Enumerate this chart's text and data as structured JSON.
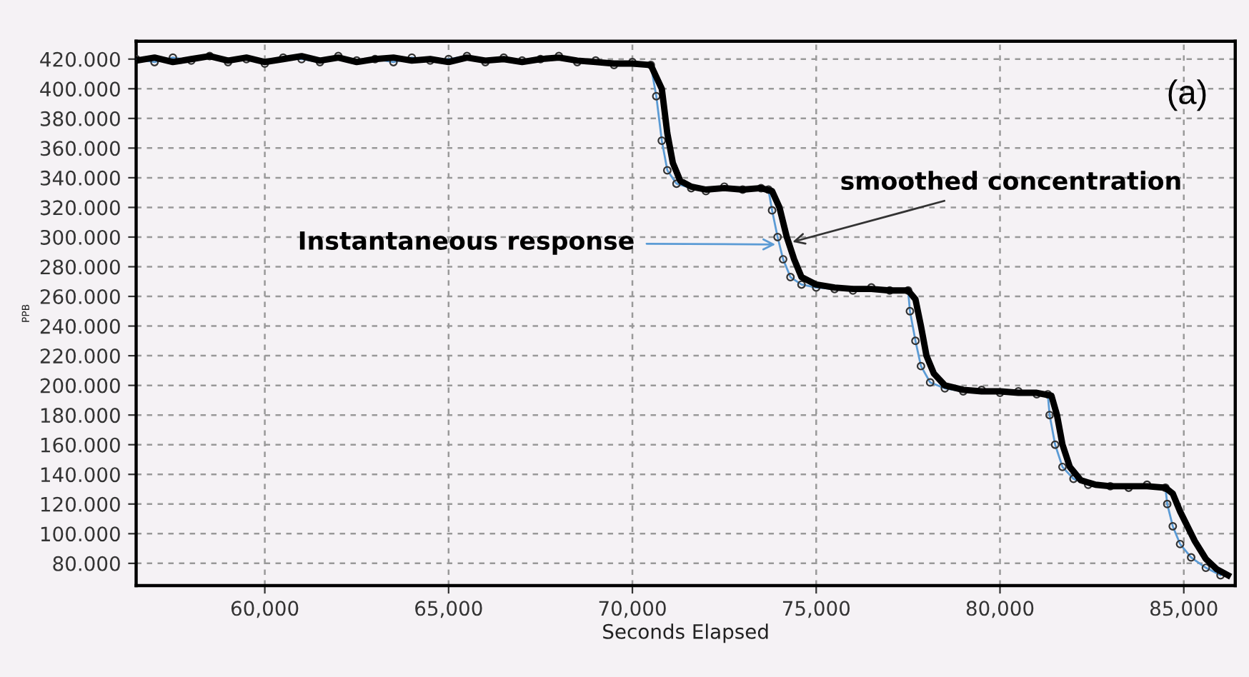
{
  "chart_data": {
    "type": "line",
    "title": "(a)",
    "xlabel": "Seconds Elapsed",
    "ylabel": "PPB",
    "xlim": [
      56500,
      86400
    ],
    "ylim": [
      65,
      432
    ],
    "xticks": [
      {
        "value": 60000,
        "label": "60,000"
      },
      {
        "value": 65000,
        "label": "65,000"
      },
      {
        "value": 70000,
        "label": "70,000"
      },
      {
        "value": 75000,
        "label": "75,000"
      },
      {
        "value": 80000,
        "label": "80,000"
      },
      {
        "value": 85000,
        "label": "85,000"
      }
    ],
    "yticks": [
      {
        "value": 80,
        "label": "80.000"
      },
      {
        "value": 100,
        "label": "100.000"
      },
      {
        "value": 120,
        "label": "120.000"
      },
      {
        "value": 140,
        "label": "140.000"
      },
      {
        "value": 160,
        "label": "160.000"
      },
      {
        "value": 180,
        "label": "180.000"
      },
      {
        "value": 200,
        "label": "200.000"
      },
      {
        "value": 220,
        "label": "220.000"
      },
      {
        "value": 240,
        "label": "240.000"
      },
      {
        "value": 260,
        "label": "260.000"
      },
      {
        "value": 280,
        "label": "280.000"
      },
      {
        "value": 300,
        "label": "300.000"
      },
      {
        "value": 320,
        "label": "320.000"
      },
      {
        "value": 340,
        "label": "340.000"
      },
      {
        "value": 360,
        "label": "360.000"
      },
      {
        "value": 380,
        "label": "380.000"
      },
      {
        "value": 400,
        "label": "400.000"
      },
      {
        "value": 420,
        "label": "420.000"
      }
    ],
    "grid": true,
    "series": [
      {
        "color": "#5b9bd5",
        "marker": "circle",
        "line_style": "solid",
        "x": [
          56500,
          57000,
          57500,
          58000,
          58500,
          59000,
          59500,
          60000,
          60500,
          61000,
          61500,
          62000,
          62500,
          63000,
          63500,
          64000,
          64500,
          65000,
          65500,
          66000,
          66500,
          67000,
          67500,
          68000,
          68500,
          69000,
          69500,
          70000,
          70500,
          70650,
          70800,
          70950,
          71200,
          71600,
          72000,
          72500,
          73000,
          73500,
          73700,
          73800,
          73950,
          74100,
          74300,
          74600,
          75000,
          75500,
          76000,
          76500,
          77000,
          77500,
          77550,
          77700,
          77850,
          78100,
          78500,
          79000,
          79500,
          80000,
          80500,
          81000,
          81300,
          81350,
          81500,
          81700,
          82000,
          82400,
          83000,
          83500,
          84000,
          84500,
          84550,
          84700,
          84900,
          85200,
          85600,
          86000
        ],
        "values": [
          420,
          418,
          421,
          419,
          422,
          418,
          420,
          417,
          421,
          420,
          418,
          422,
          419,
          420,
          418,
          421,
          419,
          420,
          422,
          418,
          421,
          419,
          420,
          422,
          418,
          419,
          416,
          418,
          416,
          395,
          365,
          345,
          336,
          333,
          331,
          334,
          332,
          333,
          332,
          318,
          300,
          285,
          273,
          268,
          266,
          265,
          264,
          266,
          264,
          264,
          250,
          230,
          213,
          202,
          198,
          196,
          197,
          195,
          196,
          194,
          194,
          180,
          160,
          145,
          137,
          133,
          132,
          131,
          133,
          131,
          120,
          105,
          93,
          84,
          77,
          72
        ]
      },
      {
        "color": "#000000",
        "marker": "none",
        "line_style": "solid",
        "x": [
          56500,
          57000,
          57500,
          58000,
          58500,
          59000,
          59500,
          60000,
          60500,
          61000,
          61500,
          62000,
          62500,
          63000,
          63500,
          64000,
          64500,
          65000,
          65500,
          66000,
          66500,
          67000,
          67500,
          68000,
          68500,
          69000,
          69500,
          70000,
          70500,
          70800,
          70950,
          71100,
          71300,
          71600,
          72000,
          72500,
          73000,
          73500,
          73800,
          74000,
          74200,
          74400,
          74600,
          75000,
          75500,
          76000,
          76500,
          77000,
          77500,
          77700,
          77850,
          78000,
          78200,
          78500,
          79000,
          79500,
          80000,
          80500,
          81000,
          81400,
          81550,
          81700,
          81900,
          82200,
          82600,
          83000,
          83500,
          84000,
          84500,
          84700,
          84900,
          85100,
          85300,
          85600,
          85900,
          86200
        ],
        "values": [
          419,
          421,
          418,
          420,
          422,
          419,
          421,
          418,
          420,
          422,
          419,
          421,
          418,
          420,
          421,
          419,
          420,
          418,
          421,
          419,
          420,
          418,
          420,
          421,
          419,
          418,
          417,
          417,
          416,
          400,
          370,
          350,
          338,
          334,
          332,
          333,
          332,
          333,
          331,
          320,
          300,
          285,
          273,
          268,
          266,
          265,
          265,
          264,
          264,
          258,
          240,
          220,
          208,
          200,
          197,
          196,
          196,
          195,
          195,
          193,
          180,
          160,
          145,
          136,
          133,
          132,
          132,
          132,
          131,
          127,
          115,
          105,
          95,
          83,
          76,
          72
        ]
      }
    ],
    "annotations": [
      {
        "text": "Instantaneous response",
        "x": 74000,
        "y": 295
      },
      {
        "text": "smoothed concentration",
        "x": 74250,
        "y": 296
      }
    ]
  }
}
